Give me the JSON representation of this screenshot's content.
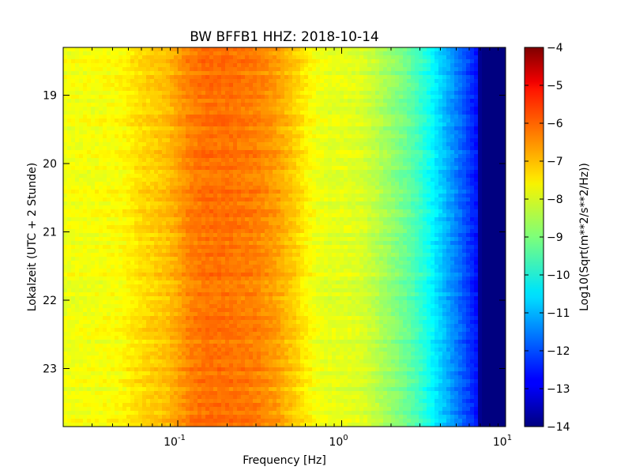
{
  "chart_data": {
    "type": "heatmap",
    "title": "BW BFFB1 HHZ: 2018-10-14",
    "xlabel": "Frequency [Hz]",
    "ylabel": "Lokalzeit (UTC + 2 Stunde)",
    "x_scale": "log",
    "xlim": [
      0.02,
      10
    ],
    "x_ticks": [
      {
        "value": 0.1,
        "base": "10",
        "exp": "-1"
      },
      {
        "value": 1,
        "base": "10",
        "exp": "0"
      },
      {
        "value": 10,
        "base": "10",
        "exp": "1"
      }
    ],
    "ylim": [
      18.3,
      23.85
    ],
    "y_inverted": true,
    "y_ticks": [
      19,
      20,
      21,
      22,
      23
    ],
    "y_tick_labels": [
      "19",
      "20",
      "21",
      "22",
      "23"
    ],
    "colorbar": {
      "label": "Log10(Sqrt(m**2/s**2/Hz))",
      "range": [
        -14,
        -4
      ],
      "ticks": [
        -4,
        -5,
        -6,
        -7,
        -8,
        -9,
        -10,
        -11,
        -12,
        -13,
        -14
      ],
      "tick_labels": [
        "−4",
        "−5",
        "−6",
        "−7",
        "−8",
        "−9",
        "−10",
        "−11",
        "−12",
        "−13",
        "−14"
      ],
      "colormap": "jet"
    },
    "spectrum_profile": {
      "frequency_hz": [
        0.02,
        0.03,
        0.045,
        0.06,
        0.085,
        0.12,
        0.15,
        0.2,
        0.3,
        0.4,
        0.5,
        0.6,
        0.7,
        0.85,
        1.0,
        1.3,
        1.6,
        2.0,
        2.5,
        3.0,
        3.5,
        4.0,
        5.0,
        6.0,
        6.8,
        7.0,
        8.0,
        10.0
      ],
      "level": [
        -7.9,
        -7.85,
        -7.75,
        -7.4,
        -7.15,
        -6.5,
        -6.35,
        -6.35,
        -6.5,
        -6.8,
        -7.2,
        -7.6,
        -7.9,
        -8.0,
        -8.0,
        -8.1,
        -8.4,
        -8.8,
        -9.2,
        -9.7,
        -10.2,
        -10.7,
        -11.5,
        -12.2,
        -12.7,
        -14.0,
        -14.0,
        -14.0
      ]
    },
    "grid": false
  }
}
